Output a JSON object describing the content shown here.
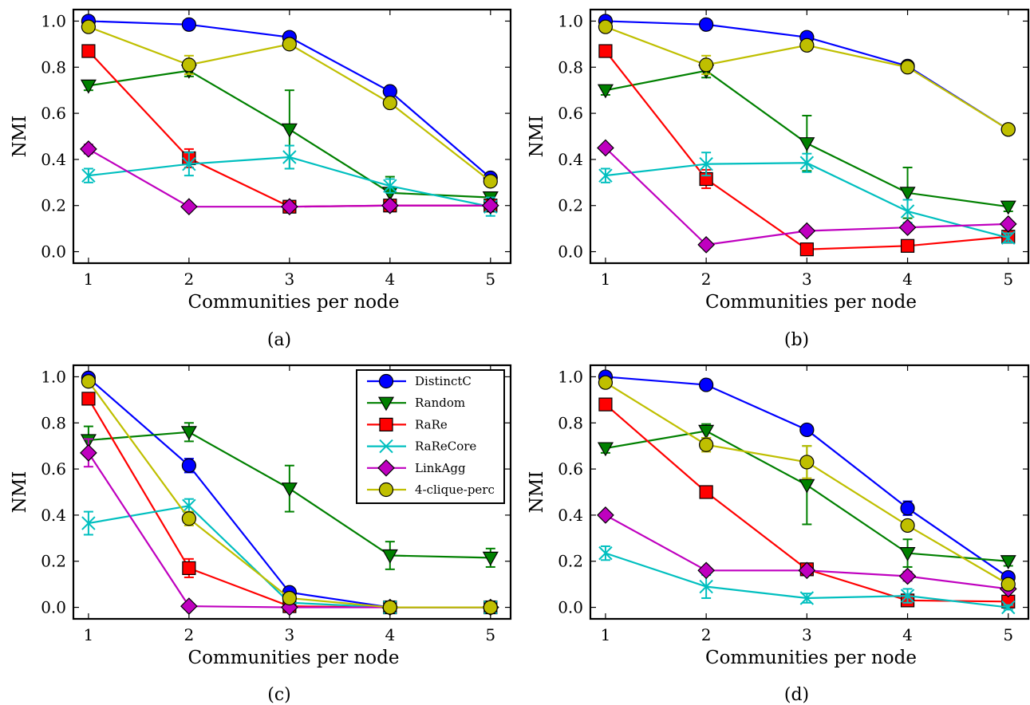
{
  "series_styles": [
    {
      "key": "distinctc",
      "color": "#0000ff",
      "marker": "circle"
    },
    {
      "key": "random",
      "color": "#008000",
      "marker": "triangle-down"
    },
    {
      "key": "rare",
      "color": "#ff0000",
      "marker": "square"
    },
    {
      "key": "rarecore",
      "color": "#00bfbf",
      "marker": "x"
    },
    {
      "key": "linkagg",
      "color": "#bf00bf",
      "marker": "diamond"
    },
    {
      "key": "clique",
      "color": "#bfbf00",
      "marker": "circle"
    }
  ],
  "chart_data": [
    {
      "type": "line",
      "caption": "(a)",
      "xlabel": "Communities per node",
      "ylabel": "NMI",
      "xlim": [
        0.85,
        5.2
      ],
      "ylim": [
        -0.05,
        1.05
      ],
      "xticks": [
        "1",
        "2",
        "3",
        "4",
        "5"
      ],
      "yticks": [
        "0.0",
        "0.2",
        "0.4",
        "0.6",
        "0.8",
        "1.0"
      ],
      "x": [
        1,
        2,
        3,
        4,
        5
      ],
      "legend": false,
      "series": [
        {
          "values": [
            1.0,
            0.985,
            0.93,
            0.695,
            0.32
          ],
          "errors": [
            0,
            0,
            0,
            0.02,
            0
          ]
        },
        {
          "values": [
            0.72,
            0.785,
            0.53,
            0.255,
            0.235
          ],
          "errors": [
            0.02,
            0.025,
            0.17,
            0.07,
            0.02
          ]
        },
        {
          "values": [
            0.87,
            0.405,
            0.195,
            0.2,
            0.2
          ],
          "errors": [
            0,
            0.04,
            0,
            0,
            0
          ]
        },
        {
          "values": [
            0.33,
            0.38,
            0.41,
            0.285,
            0.195
          ],
          "errors": [
            0.03,
            0.05,
            0.05,
            0.03,
            0.04
          ]
        },
        {
          "values": [
            0.445,
            0.195,
            0.195,
            0.2,
            0.2
          ],
          "errors": [
            0.02,
            0,
            0,
            0,
            0
          ]
        },
        {
          "values": [
            0.975,
            0.81,
            0.9,
            0.645,
            0.305
          ],
          "errors": [
            0,
            0.04,
            0,
            0.02,
            0
          ]
        }
      ]
    },
    {
      "type": "line",
      "caption": "(b)",
      "xlabel": "Communities per node",
      "ylabel": "NMI",
      "xlim": [
        0.85,
        5.2
      ],
      "ylim": [
        -0.05,
        1.05
      ],
      "xticks": [
        "1",
        "2",
        "3",
        "4",
        "5"
      ],
      "yticks": [
        "0.0",
        "0.2",
        "0.4",
        "0.6",
        "0.8",
        "1.0"
      ],
      "x": [
        1,
        2,
        3,
        4,
        5
      ],
      "legend": false,
      "series": [
        {
          "values": [
            1.0,
            0.985,
            0.93,
            0.805,
            0.53
          ],
          "errors": [
            0,
            0,
            0,
            0,
            0
          ]
        },
        {
          "values": [
            0.7,
            0.785,
            0.47,
            0.255,
            0.195
          ],
          "errors": [
            0.02,
            0.03,
            0.12,
            0.11,
            0.02
          ]
        },
        {
          "values": [
            0.87,
            0.315,
            0.01,
            0.025,
            0.065
          ],
          "errors": [
            0,
            0.04,
            0,
            0,
            0.02
          ]
        },
        {
          "values": [
            0.33,
            0.38,
            0.385,
            0.175,
            0.06
          ],
          "errors": [
            0.03,
            0.05,
            0.04,
            0.05,
            0.02
          ]
        },
        {
          "values": [
            0.45,
            0.03,
            0.09,
            0.105,
            0.12
          ],
          "errors": [
            0,
            0,
            0,
            0,
            0
          ]
        },
        {
          "values": [
            0.975,
            0.81,
            0.895,
            0.8,
            0.53
          ],
          "errors": [
            0,
            0.04,
            0,
            0,
            0
          ]
        }
      ]
    },
    {
      "type": "line",
      "caption": "(c)",
      "xlabel": "Communities per node",
      "ylabel": "NMI",
      "xlim": [
        0.85,
        5.2
      ],
      "ylim": [
        -0.05,
        1.05
      ],
      "xticks": [
        "1",
        "2",
        "3",
        "4",
        "5"
      ],
      "yticks": [
        "0.0",
        "0.2",
        "0.4",
        "0.6",
        "0.8",
        "1.0"
      ],
      "x": [
        1,
        2,
        3,
        4,
        5
      ],
      "legend": true,
      "series": [
        {
          "values": [
            0.995,
            0.615,
            0.065,
            0.0,
            0.0
          ],
          "errors": [
            0,
            0.03,
            0,
            0,
            0
          ]
        },
        {
          "values": [
            0.725,
            0.76,
            0.515,
            0.225,
            0.215
          ],
          "errors": [
            0.06,
            0.04,
            0.1,
            0.06,
            0.04
          ]
        },
        {
          "values": [
            0.905,
            0.17,
            0.005,
            0.0,
            0.0
          ],
          "errors": [
            0,
            0.04,
            0,
            0,
            0
          ]
        },
        {
          "values": [
            0.365,
            0.44,
            0.02,
            0.0,
            0.0
          ],
          "errors": [
            0.05,
            0.03,
            0,
            0,
            0
          ]
        },
        {
          "values": [
            0.67,
            0.005,
            0.0,
            0.0,
            0.0
          ],
          "errors": [
            0.06,
            0,
            0,
            0,
            0
          ]
        },
        {
          "values": [
            0.98,
            0.385,
            0.04,
            0.0,
            0.0
          ],
          "errors": [
            0,
            0.03,
            0,
            0,
            0
          ]
        }
      ]
    },
    {
      "type": "line",
      "caption": "(d)",
      "xlabel": "Communities per node",
      "ylabel": "NMI",
      "xlim": [
        0.85,
        5.2
      ],
      "ylim": [
        -0.05,
        1.05
      ],
      "xticks": [
        "1",
        "2",
        "3",
        "4",
        "5"
      ],
      "yticks": [
        "0.0",
        "0.2",
        "0.4",
        "0.6",
        "0.8",
        "1.0"
      ],
      "x": [
        1,
        2,
        3,
        4,
        5
      ],
      "legend": false,
      "series": [
        {
          "values": [
            1.0,
            0.965,
            0.77,
            0.43,
            0.13
          ],
          "errors": [
            0,
            0,
            0,
            0.03,
            0
          ]
        },
        {
          "values": [
            0.69,
            0.765,
            0.53,
            0.235,
            0.2
          ],
          "errors": [
            0.02,
            0.03,
            0.17,
            0.06,
            0.02
          ]
        },
        {
          "values": [
            0.88,
            0.5,
            0.165,
            0.03,
            0.025
          ],
          "errors": [
            0,
            0,
            0,
            0,
            0
          ]
        },
        {
          "values": [
            0.235,
            0.09,
            0.04,
            0.05,
            0.0
          ],
          "errors": [
            0.03,
            0.05,
            0.02,
            0.03,
            0.01
          ]
        },
        {
          "values": [
            0.4,
            0.16,
            0.16,
            0.135,
            0.08
          ],
          "errors": [
            0,
            0,
            0,
            0.02,
            0
          ]
        },
        {
          "values": [
            0.975,
            0.705,
            0.63,
            0.355,
            0.1
          ],
          "errors": [
            0,
            0.03,
            0.07,
            0,
            0
          ]
        }
      ]
    }
  ],
  "legend_labels": [
    "DistinctC",
    "Random",
    "RaRe",
    "RaReCore",
    "LinkAgg",
    "4-clique-perc"
  ]
}
